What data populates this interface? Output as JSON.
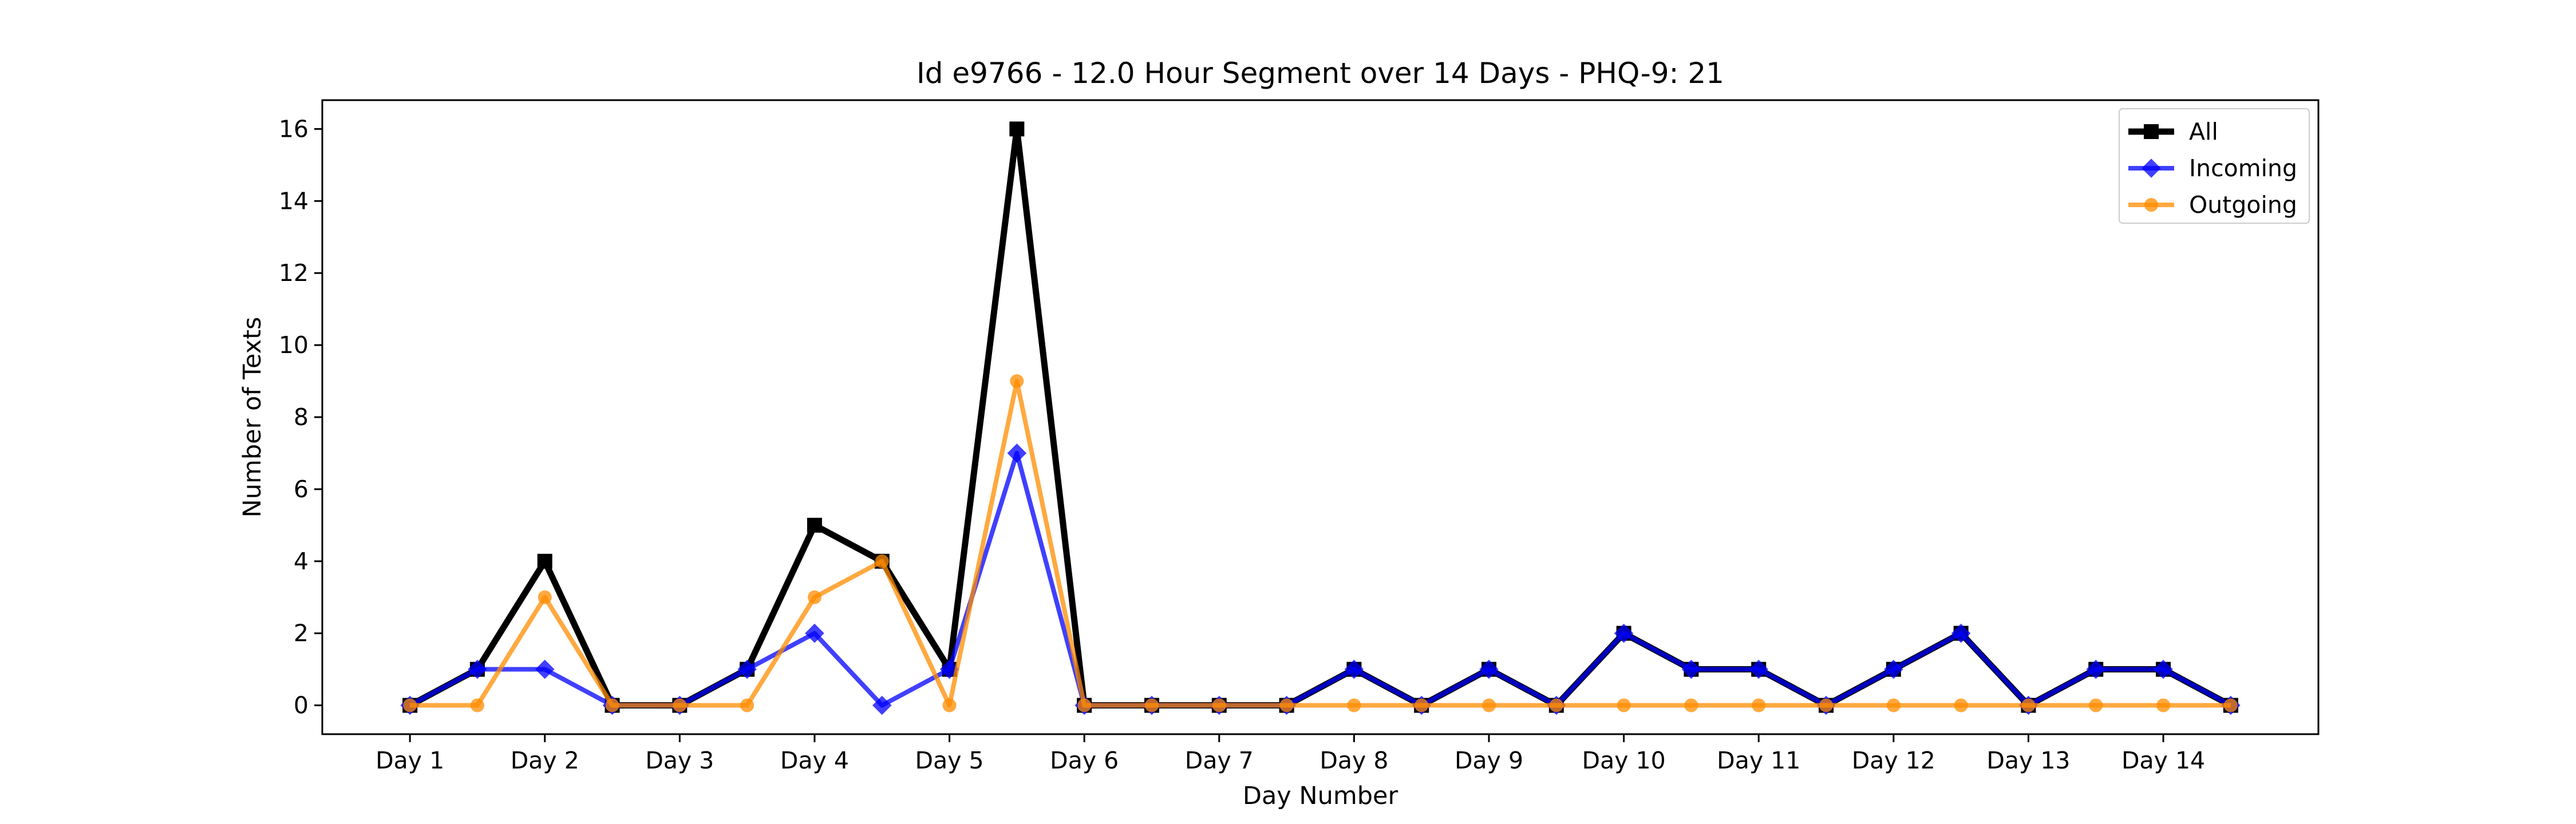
{
  "chart_data": {
    "type": "line",
    "title": "Id e9766 - 12.0 Hour Segment over 14 Days - PHQ-9: 21",
    "xlabel": "Day Number",
    "ylabel": "Number of Texts",
    "x_tick_labels": [
      "Day 1",
      "Day 2",
      "Day 3",
      "Day 4",
      "Day 5",
      "Day 6",
      "Day 7",
      "Day 8",
      "Day 9",
      "Day 10",
      "Day 11",
      "Day 12",
      "Day 13",
      "Day 14"
    ],
    "y_ticks": [
      0,
      2,
      4,
      6,
      8,
      10,
      12,
      14,
      16
    ],
    "ylim": [
      -0.8,
      16.8
    ],
    "xlim": [
      -1.3,
      28.3
    ],
    "grid": false,
    "legend_position": "top-right",
    "segments_per_day": 2,
    "series": [
      {
        "name": "All",
        "color": "#000000",
        "marker": "square",
        "values": [
          0,
          1,
          4,
          0,
          0,
          1,
          5,
          4,
          1,
          16,
          0,
          0,
          0,
          0,
          1,
          0,
          1,
          0,
          2,
          1,
          1,
          0,
          1,
          2,
          0,
          1,
          1,
          0
        ]
      },
      {
        "name": "Incoming",
        "color": "#0000ff",
        "marker": "diamond",
        "values": [
          0,
          1,
          1,
          0,
          0,
          1,
          2,
          0,
          1,
          7,
          0,
          0,
          0,
          0,
          1,
          0,
          1,
          0,
          2,
          1,
          1,
          0,
          1,
          2,
          0,
          1,
          1,
          0
        ]
      },
      {
        "name": "Outgoing",
        "color": "#ff8c00",
        "marker": "circle",
        "values": [
          0,
          0,
          3,
          0,
          0,
          0,
          3,
          4,
          0,
          9,
          0,
          0,
          0,
          0,
          0,
          0,
          0,
          0,
          0,
          0,
          0,
          0,
          0,
          0,
          0,
          0,
          0,
          0
        ]
      }
    ]
  }
}
